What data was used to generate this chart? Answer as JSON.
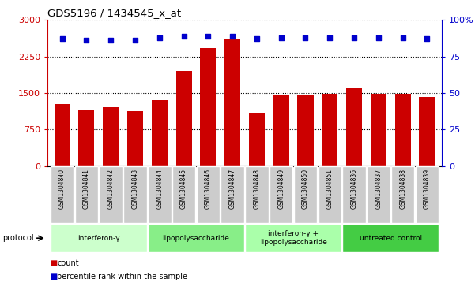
{
  "title": "GDS5196 / 1434545_x_at",
  "samples": [
    "GSM1304840",
    "GSM1304841",
    "GSM1304842",
    "GSM1304843",
    "GSM1304844",
    "GSM1304845",
    "GSM1304846",
    "GSM1304847",
    "GSM1304848",
    "GSM1304849",
    "GSM1304850",
    "GSM1304851",
    "GSM1304836",
    "GSM1304837",
    "GSM1304838",
    "GSM1304839"
  ],
  "counts": [
    1280,
    1140,
    1200,
    1120,
    1350,
    1950,
    2420,
    2600,
    1080,
    1450,
    1470,
    1480,
    1590,
    1490,
    1490,
    1420
  ],
  "percentile_ranks": [
    87,
    86,
    86,
    86,
    88,
    89,
    89,
    89,
    87,
    88,
    88,
    88,
    88,
    88,
    88,
    87
  ],
  "left_ylim": [
    0,
    3000
  ],
  "right_ylim": [
    0,
    100
  ],
  "left_yticks": [
    0,
    750,
    1500,
    2250,
    3000
  ],
  "right_yticks": [
    0,
    25,
    50,
    75,
    100
  ],
  "bar_color": "#cc0000",
  "dot_color": "#0000cc",
  "groups": [
    {
      "label": "interferon-γ",
      "start": 0,
      "end": 4,
      "color": "#ccffcc"
    },
    {
      "label": "lipopolysaccharide",
      "start": 4,
      "end": 8,
      "color": "#88ee88"
    },
    {
      "label": "interferon-γ +\nlipopolysaccharide",
      "start": 8,
      "end": 12,
      "color": "#aaffaa"
    },
    {
      "label": "untreated control",
      "start": 12,
      "end": 16,
      "color": "#44cc44"
    }
  ],
  "legend_count_label": "count",
  "legend_pct_label": "percentile rank within the sample",
  "protocol_label": "protocol"
}
